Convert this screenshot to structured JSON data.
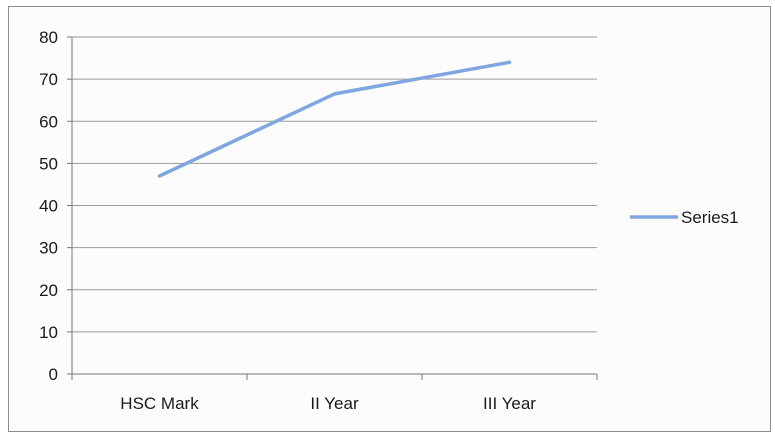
{
  "chart_data": {
    "type": "line",
    "title": "",
    "xlabel": "",
    "ylabel": "",
    "categories": [
      "HSC Mark",
      "II Year",
      "III Year"
    ],
    "series": [
      {
        "name": "Series1",
        "values": [
          47,
          66.5,
          74
        ],
        "color": "#7ea6e0"
      }
    ],
    "ylim": [
      0,
      80
    ],
    "yticks": [
      "0",
      "10",
      "20",
      "30",
      "40",
      "50",
      "60",
      "70",
      "80"
    ],
    "grid": true,
    "legend": "right"
  }
}
